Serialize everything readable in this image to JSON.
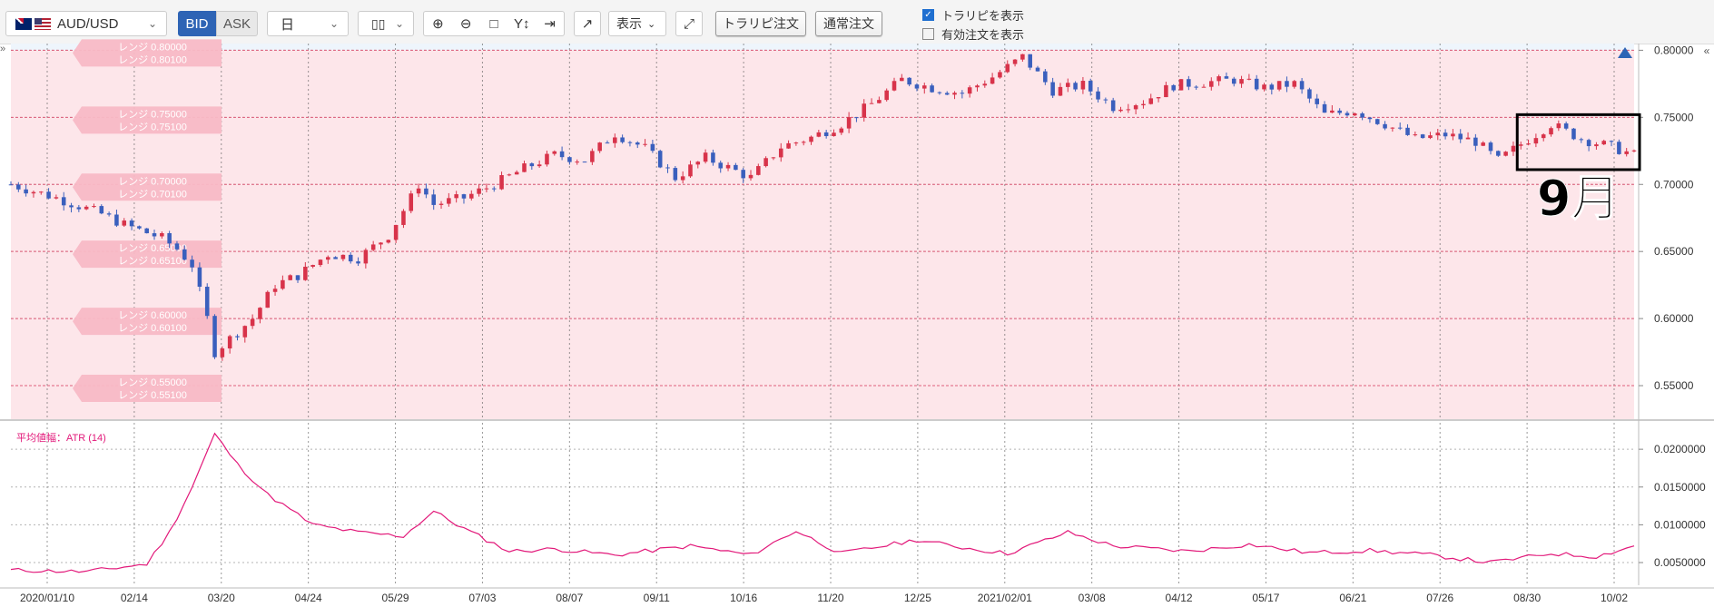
{
  "toolbar": {
    "symbol": "AUD/USD",
    "bid_label": "BID",
    "ask_label": "ASK",
    "timeframe": "日",
    "display_label": "表示",
    "trarip_order": "トラリピ注文",
    "normal_order": "通常注文",
    "show_trarip": "トラリピを表示",
    "show_active_orders": "有効注文を表示",
    "show_trarip_checked": true,
    "show_active_orders_checked": false
  },
  "chart_data": {
    "type": "candlestick",
    "price_axis": {
      "ylim": [
        0.525,
        0.805
      ],
      "ticks": [
        "0.80000",
        "0.75000",
        "0.70000",
        "0.65000",
        "0.60000",
        "0.55000"
      ]
    },
    "atr_axis": {
      "ylim": [
        0.002,
        0.0235
      ],
      "ticks": [
        "0.0200000",
        "0.0150000",
        "0.0100000",
        "0.0050000"
      ]
    },
    "x_ticks": [
      "2020/01/10",
      "02/14",
      "03/20",
      "04/24",
      "05/29",
      "07/03",
      "08/07",
      "09/11",
      "10/16",
      "11/20",
      "12/25",
      "2021/02/01",
      "03/08",
      "04/12",
      "05/17",
      "06/21",
      "07/26",
      "08/30",
      "10/02"
    ],
    "range_labels": [
      {
        "a": "レンジ 0.80000",
        "b": "レンジ 0.80100"
      },
      {
        "a": "レンジ 0.75000",
        "b": "レンジ 0.75100"
      },
      {
        "a": "レンジ 0.70000",
        "b": "レンジ 0.70100"
      },
      {
        "a": "レンジ 0.65000",
        "b": "レンジ 0.65100"
      },
      {
        "a": "レンジ 0.60000",
        "b": "レンジ 0.60100"
      },
      {
        "a": "レンジ 0.55000",
        "b": "レンジ 0.55100"
      }
    ],
    "range_levels": [
      0.8,
      0.75,
      0.7,
      0.65,
      0.6,
      0.55
    ],
    "close_anchors": [
      [
        0,
        0.7
      ],
      [
        6,
        0.69
      ],
      [
        12,
        0.678
      ],
      [
        15,
        0.67
      ],
      [
        20,
        0.66
      ],
      [
        22,
        0.652
      ],
      [
        24,
        0.64
      ],
      [
        26,
        0.6
      ],
      [
        27,
        0.575
      ],
      [
        28,
        0.58
      ],
      [
        32,
        0.6
      ],
      [
        35,
        0.625
      ],
      [
        38,
        0.632
      ],
      [
        42,
        0.648
      ],
      [
        46,
        0.645
      ],
      [
        50,
        0.662
      ],
      [
        53,
        0.69
      ],
      [
        54,
        0.7
      ],
      [
        56,
        0.685
      ],
      [
        60,
        0.69
      ],
      [
        64,
        0.7
      ],
      [
        68,
        0.712
      ],
      [
        72,
        0.722
      ],
      [
        76,
        0.718
      ],
      [
        80,
        0.738
      ],
      [
        84,
        0.727
      ],
      [
        88,
        0.705
      ],
      [
        92,
        0.72
      ],
      [
        96,
        0.71
      ],
      [
        98,
        0.705
      ],
      [
        102,
        0.728
      ],
      [
        106,
        0.735
      ],
      [
        110,
        0.745
      ],
      [
        114,
        0.76
      ],
      [
        118,
        0.778
      ],
      [
        122,
        0.772
      ],
      [
        126,
        0.768
      ],
      [
        130,
        0.78
      ],
      [
        134,
        0.795
      ],
      [
        138,
        0.77
      ],
      [
        142,
        0.774
      ],
      [
        146,
        0.758
      ],
      [
        150,
        0.762
      ],
      [
        154,
        0.774
      ],
      [
        158,
        0.776
      ],
      [
        162,
        0.778
      ],
      [
        166,
        0.772
      ],
      [
        170,
        0.775
      ],
      [
        174,
        0.752
      ],
      [
        178,
        0.755
      ],
      [
        182,
        0.745
      ],
      [
        186,
        0.734
      ],
      [
        190,
        0.737
      ],
      [
        194,
        0.732
      ],
      [
        197,
        0.718
      ],
      [
        200,
        0.73
      ],
      [
        204,
        0.745
      ],
      [
        208,
        0.734
      ],
      [
        212,
        0.728
      ],
      [
        215,
        0.722
      ]
    ],
    "atr_anchors": [
      [
        0,
        0.004
      ],
      [
        10,
        0.0038
      ],
      [
        18,
        0.0048
      ],
      [
        21,
        0.009
      ],
      [
        24,
        0.015
      ],
      [
        27,
        0.022
      ],
      [
        30,
        0.018
      ],
      [
        34,
        0.014
      ],
      [
        40,
        0.01
      ],
      [
        46,
        0.009
      ],
      [
        52,
        0.0085
      ],
      [
        56,
        0.0118
      ],
      [
        60,
        0.0095
      ],
      [
        66,
        0.0065
      ],
      [
        72,
        0.0068
      ],
      [
        80,
        0.006
      ],
      [
        90,
        0.0072
      ],
      [
        98,
        0.006
      ],
      [
        104,
        0.0092
      ],
      [
        110,
        0.0062
      ],
      [
        120,
        0.008
      ],
      [
        126,
        0.007
      ],
      [
        132,
        0.0062
      ],
      [
        140,
        0.009
      ],
      [
        146,
        0.0072
      ],
      [
        156,
        0.0065
      ],
      [
        164,
        0.0074
      ],
      [
        172,
        0.0063
      ],
      [
        180,
        0.0066
      ],
      [
        188,
        0.006
      ],
      [
        196,
        0.005
      ],
      [
        204,
        0.0062
      ],
      [
        210,
        0.0058
      ],
      [
        215,
        0.0072
      ]
    ],
    "indicator_label": "平均値幅：ATR (14)",
    "annotation": "9月"
  }
}
